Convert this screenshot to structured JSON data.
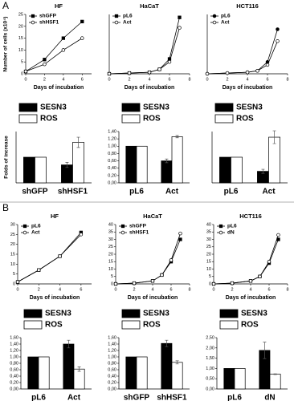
{
  "panel_labels": [
    "A",
    "B"
  ],
  "chart_data": [
    {
      "type": "line",
      "title": "HF",
      "ylabel": "Number of cells (x10⁴)",
      "xlabel": "Days of incubation",
      "xlim": [
        0,
        7
      ],
      "xticks": [
        0,
        2,
        4,
        6
      ],
      "ylim": [
        0,
        25
      ],
      "yticks": [
        0,
        5,
        10,
        15,
        20,
        25
      ],
      "x": [
        0,
        2,
        4,
        6
      ],
      "series": [
        {
          "name": "shGFP",
          "color": "#000000",
          "marker": "square",
          "filled": true,
          "values": [
            1,
            6,
            15,
            22
          ]
        },
        {
          "name": "shHSF1",
          "color": "#000000",
          "marker": "circle",
          "filled": false,
          "values": [
            1,
            4,
            10,
            15
          ]
        }
      ]
    },
    {
      "type": "line",
      "title": "HaCaT",
      "xlabel": "Days of incubation",
      "xlim": [
        0,
        8
      ],
      "xticks": [
        0,
        2,
        4,
        6,
        8
      ],
      "ylim": [
        0,
        40
      ],
      "x": [
        0,
        2,
        4,
        5,
        6,
        7
      ],
      "series": [
        {
          "name": "pL6",
          "color": "#000000",
          "marker": "square",
          "filled": true,
          "values": [
            0,
            0.5,
            1,
            3,
            10,
            38
          ]
        },
        {
          "name": "Act",
          "color": "#000000",
          "marker": "circle",
          "filled": false,
          "values": [
            0,
            0.5,
            1,
            3,
            8,
            31
          ]
        }
      ]
    },
    {
      "type": "line",
      "title": "HCT116",
      "xlabel": "Days of incubation",
      "xlim": [
        0,
        8
      ],
      "xticks": [
        0,
        2,
        4,
        6,
        8
      ],
      "ylim": [
        0,
        40
      ],
      "x": [
        0,
        2,
        4,
        5,
        6,
        7
      ],
      "series": [
        {
          "name": "pL6",
          "color": "#000000",
          "marker": "circle",
          "filled": true,
          "values": [
            0,
            0.5,
            1,
            2,
            8,
            30
          ]
        },
        {
          "name": "Act",
          "color": "#000000",
          "marker": "circle",
          "filled": false,
          "values": [
            0,
            0.5,
            1,
            2,
            6,
            22
          ]
        }
      ]
    },
    {
      "type": "bar",
      "ylabel": "Folds of increase",
      "ylim": [
        0,
        2
      ],
      "categories": [
        "shGFP",
        "shHSF1"
      ],
      "series": [
        {
          "name": "SESN3",
          "color": "#000000",
          "values": [
            1.0,
            0.7
          ],
          "errors": [
            0,
            0.1
          ]
        },
        {
          "name": "ROS",
          "color": "#ffffff",
          "values": [
            1.0,
            1.58
          ],
          "errors": [
            0,
            0.2
          ]
        }
      ]
    },
    {
      "type": "bar",
      "ylim": [
        0,
        1.4
      ],
      "yticks": [
        {
          "value": 0,
          "label": "0,00"
        },
        {
          "value": 0.2,
          "label": "0,20"
        },
        {
          "value": 0.4,
          "label": "0,40"
        },
        {
          "value": 0.6,
          "label": "0,60"
        },
        {
          "value": 0.8,
          "label": "0,80"
        },
        {
          "value": 1.0,
          "label": "1,00"
        },
        {
          "value": 1.2,
          "label": "1,20"
        },
        {
          "value": 1.4,
          "label": "1,40"
        }
      ],
      "categories": [
        "pL6",
        "Act"
      ],
      "series": [
        {
          "name": "SESN3",
          "color": "#000000",
          "values": [
            1.0,
            0.6
          ],
          "errors": [
            0,
            0.05
          ]
        },
        {
          "name": "ROS",
          "color": "#ffffff",
          "values": [
            1.0,
            1.26
          ],
          "errors": [
            0,
            0.03
          ]
        }
      ]
    },
    {
      "type": "bar",
      "ylim": [
        0,
        2
      ],
      "categories": [
        "pL6",
        "Act"
      ],
      "series": [
        {
          "name": "SESN3",
          "color": "#000000",
          "values": [
            1.0,
            0.45
          ],
          "errors": [
            0,
            0.08
          ]
        },
        {
          "name": "ROS",
          "color": "#ffffff",
          "values": [
            1.0,
            1.78
          ],
          "errors": [
            0,
            0.25
          ]
        }
      ]
    },
    {
      "type": "line",
      "title": "HF",
      "xlabel": "Days of incubation",
      "xlim": [
        0,
        7
      ],
      "xticks": [
        0,
        2,
        4,
        6
      ],
      "ylim": [
        0,
        30
      ],
      "yticks": [
        0,
        5,
        10,
        15,
        20,
        25,
        30
      ],
      "x": [
        0,
        2,
        4,
        6
      ],
      "series": [
        {
          "name": "pL6",
          "color": "#000000",
          "marker": "square",
          "filled": true,
          "values": [
            1,
            7,
            14,
            26
          ]
        },
        {
          "name": "Act",
          "color": "#000000",
          "marker": "circle",
          "filled": false,
          "values": [
            1,
            7,
            14,
            25
          ]
        }
      ]
    },
    {
      "type": "line",
      "title": "HaCaT",
      "xlabel": "Days of incubation",
      "xlim": [
        0,
        8
      ],
      "xticks": [
        0,
        2,
        4,
        6,
        8
      ],
      "ylim": [
        0,
        40
      ],
      "yticks": [
        0,
        5,
        10,
        15,
        20,
        25,
        30,
        35,
        40
      ],
      "x": [
        0,
        2,
        4,
        5,
        6,
        7
      ],
      "series": [
        {
          "name": "shGFP",
          "color": "#000000",
          "marker": "square",
          "filled": true,
          "values": [
            0,
            0.5,
            2,
            6,
            15,
            30
          ]
        },
        {
          "name": "shHSF1",
          "color": "#000000",
          "marker": "circle",
          "filled": false,
          "values": [
            0,
            0.5,
            2,
            6,
            16,
            34
          ]
        }
      ]
    },
    {
      "type": "line",
      "title": "HCT116",
      "xlabel": "Days of incubation",
      "xlim": [
        0,
        8
      ],
      "xticks": [
        0,
        2,
        4,
        6,
        8
      ],
      "ylim": [
        0,
        40
      ],
      "yticks": [
        0,
        5,
        10,
        15,
        20,
        25,
        30,
        35,
        40
      ],
      "x": [
        0,
        2,
        4,
        5,
        6,
        7
      ],
      "series": [
        {
          "name": "pL6",
          "color": "#000000",
          "marker": "square",
          "filled": true,
          "values": [
            0,
            0.5,
            2,
            5,
            14,
            30
          ]
        },
        {
          "name": "dN",
          "color": "#000000",
          "marker": "circle",
          "filled": false,
          "values": [
            0,
            0.5,
            2,
            5,
            15,
            33
          ]
        }
      ]
    },
    {
      "type": "bar",
      "ylim": [
        0,
        1.6
      ],
      "yticks": [
        {
          "value": 0,
          "label": "0,00"
        },
        {
          "value": 0.2,
          "label": "0,20"
        },
        {
          "value": 0.4,
          "label": "0,40"
        },
        {
          "value": 0.6,
          "label": "0,60"
        },
        {
          "value": 0.8,
          "label": "0,80"
        },
        {
          "value": 1.0,
          "label": "1,00"
        },
        {
          "value": 1.2,
          "label": "1,20"
        },
        {
          "value": 1.4,
          "label": "1,40"
        },
        {
          "value": 1.6,
          "label": "1,60"
        }
      ],
      "categories": [
        "pL6",
        "Act"
      ],
      "series": [
        {
          "name": "SESN3",
          "color": "#000000",
          "values": [
            1.0,
            1.4
          ],
          "errors": [
            0,
            0.12
          ]
        },
        {
          "name": "ROS",
          "color": "#ffffff",
          "values": [
            1.0,
            0.62
          ],
          "errors": [
            0,
            0.07
          ]
        }
      ]
    },
    {
      "type": "bar",
      "ylim": [
        0,
        1.6
      ],
      "yticks": [
        {
          "value": 0,
          "label": "0,00"
        },
        {
          "value": 0.2,
          "label": "0,20"
        },
        {
          "value": 0.4,
          "label": "0,40"
        },
        {
          "value": 0.6,
          "label": "0,60"
        },
        {
          "value": 0.8,
          "label": "0,80"
        },
        {
          "value": 1.0,
          "label": "1,00"
        },
        {
          "value": 1.2,
          "label": "1,20"
        },
        {
          "value": 1.4,
          "label": "1,40"
        },
        {
          "value": 1.6,
          "label": "1,60"
        }
      ],
      "categories": [
        "shGFP",
        "shHSF1"
      ],
      "series": [
        {
          "name": "SESN3",
          "color": "#000000",
          "values": [
            1.0,
            1.42
          ],
          "errors": [
            0,
            0.1
          ]
        },
        {
          "name": "ROS",
          "color": "#ffffff",
          "values": [
            1.0,
            0.83
          ],
          "errors": [
            0,
            0.05
          ]
        }
      ]
    },
    {
      "type": "bar",
      "ylim": [
        0,
        2.5
      ],
      "yticks": [
        {
          "value": 0,
          "label": "0,00"
        },
        {
          "value": 0.5,
          "label": "0,50"
        },
        {
          "value": 1.0,
          "label": "1,00"
        },
        {
          "value": 1.5,
          "label": "1,50"
        },
        {
          "value": 2.0,
          "label": "2,00"
        },
        {
          "value": 2.5,
          "label": "2,50"
        }
      ],
      "categories": [
        "pL6",
        "dN"
      ],
      "series": [
        {
          "name": "SESN3",
          "color": "#000000",
          "values": [
            1.0,
            1.88
          ],
          "errors": [
            0,
            0.4
          ]
        },
        {
          "name": "ROS",
          "color": "#ffffff",
          "values": [
            1.0,
            0.72
          ],
          "errors": [
            0,
            0.02
          ]
        }
      ]
    }
  ]
}
